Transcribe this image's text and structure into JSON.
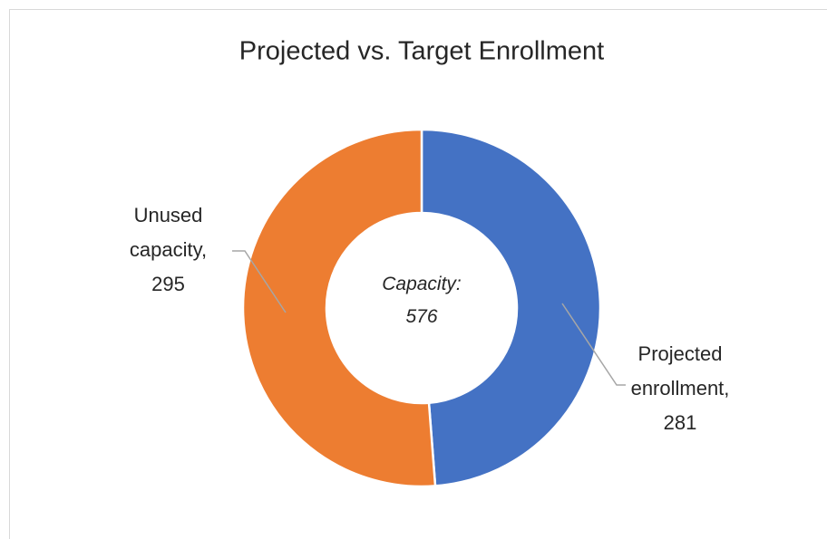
{
  "chart_data": {
    "type": "doughnut",
    "title": "Projected vs. Target Enrollment",
    "categories": [
      "Projected enrollment",
      "Unused capacity"
    ],
    "values": [
      281,
      295
    ],
    "value_labels": [
      "Projected enrollment, 281",
      "Unused capacity, 295"
    ],
    "colors": [
      "#4472c4",
      "#ed7d31"
    ],
    "center_label": "Capacity: 576"
  }
}
